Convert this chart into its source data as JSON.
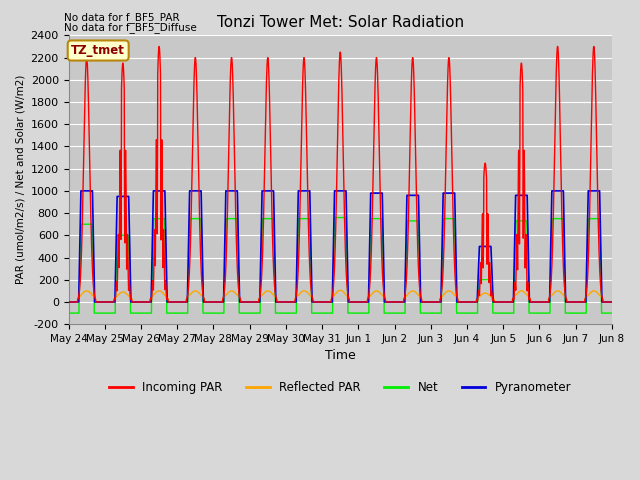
{
  "title": "Tonzi Tower Met: Solar Radiation",
  "ylabel": "PAR (umol/m2/s) / Net and Solar (W/m2)",
  "xlabel": "Time",
  "ylim": [
    -200,
    2400
  ],
  "yticks": [
    -200,
    0,
    200,
    400,
    600,
    800,
    1000,
    1200,
    1400,
    1600,
    1800,
    2000,
    2200,
    2400
  ],
  "x_labels": [
    "May 24",
    "May 25",
    "May 26",
    "May 27",
    "May 28",
    "May 29",
    "May 30",
    "May 31",
    "Jun 1",
    "Jun 2",
    "Jun 3",
    "Jun 4",
    "Jun 5",
    "Jun 6",
    "Jun 7",
    "Jun 8"
  ],
  "note1": "No data for f_BF5_PAR",
  "note2": "No data for f_BF5_Diffuse",
  "box_label": "TZ_tmet",
  "bg_color": "#d8d8d8",
  "plot_bg_color": "#c8c8c8",
  "grid_color": "#ffffff",
  "colors": {
    "incoming_par": "#ff0000",
    "reflected_par": "#ffa500",
    "net": "#00ee00",
    "pyranometer": "#0000dd"
  },
  "legend_labels": [
    "Incoming PAR",
    "Reflected PAR",
    "Net",
    "Pyranometer"
  ],
  "n_days": 15,
  "peak_par": [
    2200,
    2150,
    2300,
    2200,
    2200,
    2200,
    2200,
    2250,
    2200,
    2200,
    2200,
    1250,
    2150,
    2300,
    2300
  ],
  "par_cloudy": [
    0,
    1,
    1,
    0,
    0,
    0,
    0,
    0,
    0,
    0,
    0,
    1,
    1,
    0,
    0
  ],
  "peak_pyranometer": [
    1000,
    950,
    1000,
    1000,
    1000,
    1000,
    1000,
    1000,
    980,
    960,
    980,
    500,
    960,
    1000,
    1000
  ],
  "peak_net": [
    700,
    600,
    750,
    750,
    750,
    750,
    750,
    760,
    750,
    730,
    750,
    200,
    730,
    750,
    750
  ],
  "peak_reflected": [
    100,
    90,
    100,
    100,
    100,
    100,
    100,
    105,
    100,
    100,
    100,
    80,
    100,
    100,
    100
  ],
  "night_net": -100,
  "day_start": 0.25,
  "day_end": 0.75
}
